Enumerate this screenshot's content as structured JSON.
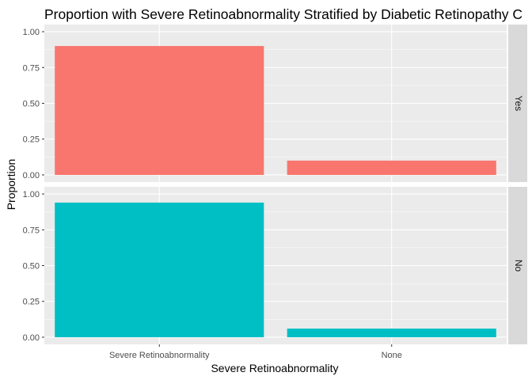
{
  "chart_data": {
    "type": "bar",
    "title": "Proportion with Severe Retinoabnormality Stratified by Diabetic Retinopathy C",
    "xlabel": "Severe Retinoabnormality",
    "ylabel": "Proportion",
    "categories": [
      "Severe Retinoabnormality",
      "None"
    ],
    "ylim": [
      0,
      1
    ],
    "yticks": [
      "0.00",
      "0.25",
      "0.50",
      "0.75",
      "1.00"
    ],
    "grid": true,
    "facet_layout": "rows",
    "panels": [
      {
        "facet": "Yes",
        "color": "#F8766D",
        "values": [
          0.9,
          0.1
        ]
      },
      {
        "facet": "No",
        "color": "#00BFC4",
        "values": [
          0.94,
          0.06
        ]
      }
    ]
  },
  "colors": {
    "panel_background": "#EBEBEB",
    "strip_background": "#D9D9D9",
    "grid": "#FFFFFF"
  }
}
